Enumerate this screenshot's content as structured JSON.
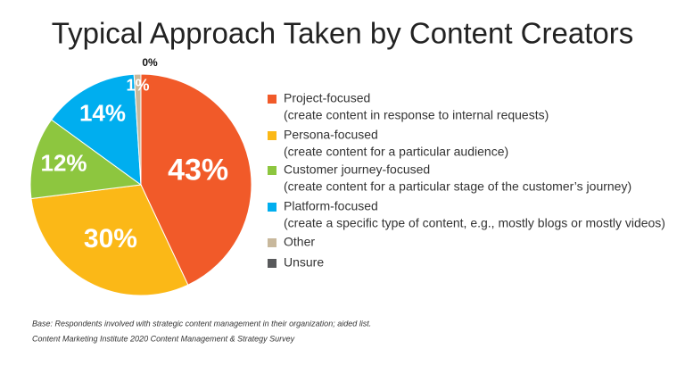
{
  "chart_data": {
    "type": "pie",
    "title": "Typical Approach Taken by Content Creators",
    "categories": [
      "Project-focused",
      "Persona-focused",
      "Customer journey-focused",
      "Platform-focused",
      "Other",
      "Unsure"
    ],
    "descriptions": [
      "(create content in response to internal requests)",
      "(create content for a particular audience)",
      "(create content for a particular stage of the customer’s journey)",
      "(create a specific type of content, e.g., mostly blogs or mostly videos)",
      null,
      null
    ],
    "values": [
      43,
      30,
      12,
      14,
      1,
      0
    ],
    "value_labels": [
      "43%",
      "30%",
      "12%",
      "14%",
      "1%",
      "0%"
    ],
    "colors": [
      "#f15a29",
      "#fbb817",
      "#8dc63f",
      "#00aeef",
      "#c8b89c",
      "#58595b"
    ],
    "notes": [
      "Base: Respondents involved with strategic content management in their organization; aided list.",
      "Content Marketing Institute 2020 Content Management & Strategy Survey"
    ]
  }
}
